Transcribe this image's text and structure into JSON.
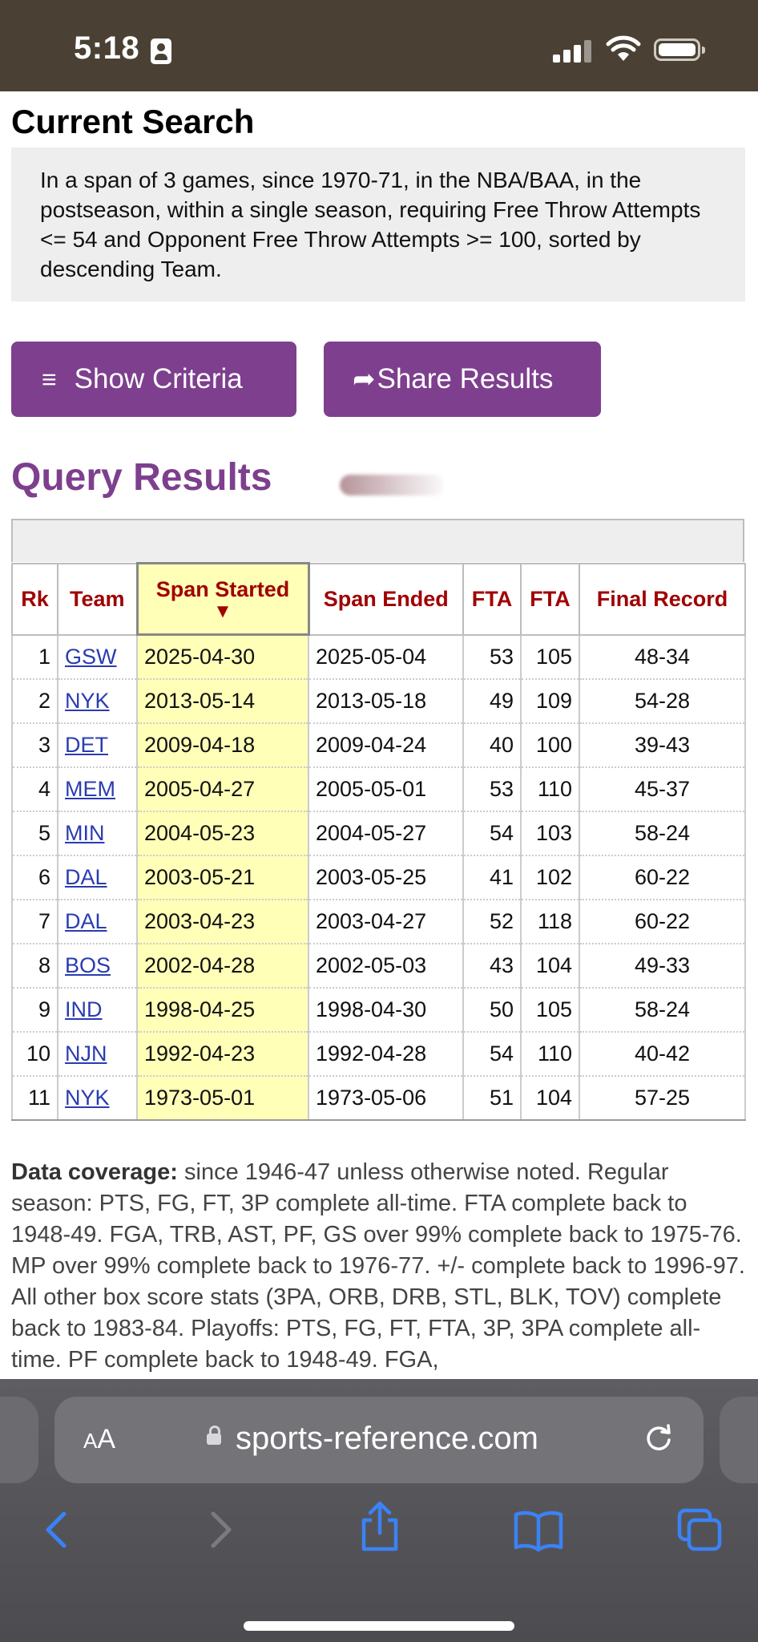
{
  "status_bar": {
    "time": "5:18"
  },
  "current_search": {
    "heading": "Current Search",
    "description": "In a span of 3 games, since 1970-71, in the NBA/BAA, in the postseason, within a single season, requiring Free Throw Attempts <= 54 and Opponent Free Throw Attempts >= 100, sorted by descending Team."
  },
  "buttons": {
    "show_criteria": "Show Criteria",
    "share_results": "Share Results"
  },
  "results": {
    "heading": "Query Results",
    "columns": [
      "Rk",
      "Team",
      "Span Started",
      "Span Ended",
      "FTA",
      "FTA",
      "Final Record"
    ],
    "sort_arrow": "▼",
    "rows": [
      {
        "rk": "1",
        "team": "GSW",
        "start": "2025-04-30",
        "end": "2025-05-04",
        "fta": "53",
        "opp_fta": "105",
        "record": "48-34"
      },
      {
        "rk": "2",
        "team": "NYK",
        "start": "2013-05-14",
        "end": "2013-05-18",
        "fta": "49",
        "opp_fta": "109",
        "record": "54-28"
      },
      {
        "rk": "3",
        "team": "DET",
        "start": "2009-04-18",
        "end": "2009-04-24",
        "fta": "40",
        "opp_fta": "100",
        "record": "39-43"
      },
      {
        "rk": "4",
        "team": "MEM",
        "start": "2005-04-27",
        "end": "2005-05-01",
        "fta": "53",
        "opp_fta": "110",
        "record": "45-37"
      },
      {
        "rk": "5",
        "team": "MIN",
        "start": "2004-05-23",
        "end": "2004-05-27",
        "fta": "54",
        "opp_fta": "103",
        "record": "58-24"
      },
      {
        "rk": "6",
        "team": "DAL",
        "start": "2003-05-21",
        "end": "2003-05-25",
        "fta": "41",
        "opp_fta": "102",
        "record": "60-22"
      },
      {
        "rk": "7",
        "team": "DAL",
        "start": "2003-04-23",
        "end": "2003-04-27",
        "fta": "52",
        "opp_fta": "118",
        "record": "60-22"
      },
      {
        "rk": "8",
        "team": "BOS",
        "start": "2002-04-28",
        "end": "2002-05-03",
        "fta": "43",
        "opp_fta": "104",
        "record": "49-33"
      },
      {
        "rk": "9",
        "team": "IND",
        "start": "1998-04-25",
        "end": "1998-04-30",
        "fta": "50",
        "opp_fta": "105",
        "record": "58-24"
      },
      {
        "rk": "10",
        "team": "NJN",
        "start": "1992-04-23",
        "end": "1992-04-28",
        "fta": "54",
        "opp_fta": "110",
        "record": "40-42"
      },
      {
        "rk": "11",
        "team": "NYK",
        "start": "1973-05-01",
        "end": "1973-05-06",
        "fta": "51",
        "opp_fta": "104",
        "record": "57-25"
      }
    ]
  },
  "coverage": {
    "label": "Data coverage:",
    "text": " since 1946-47 unless otherwise noted. Regular season: PTS, FG, FT, 3P complete all-time. FTA complete back to 1948-49. FGA, TRB, AST, PF, GS over 99% complete back to 1975-76. MP over 99% complete back to 1976-77. +/- complete back to 1996-97. All other box score stats (3PA, ORB, DRB, STL, BLK, TOV) complete back to 1983-84. Playoffs: PTS, FG, FT, FTA, 3P, 3PA complete all-time. PF complete back to 1948-49. FGA,"
  },
  "browser": {
    "aa_big": "A",
    "aa_small": "A",
    "url": "sports-reference.com",
    "icons": [
      "back-icon",
      "forward-icon",
      "share-icon",
      "bookmarks-icon",
      "tabs-icon",
      "reload-icon",
      "lock-icon"
    ],
    "accent": "#3b82f6"
  }
}
